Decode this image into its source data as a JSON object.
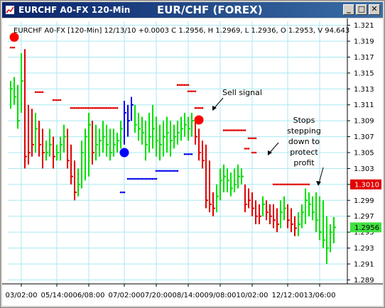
{
  "window": {
    "title": "EURCHF A0-FX 120-Min",
    "chart_title": "EUR/CHF (FOREX)",
    "buttons": {
      "minimize": "_",
      "maximize": "□",
      "close": "✕"
    }
  },
  "info_line": "EURCHF A0-FX [120-Min] 12/13/10 +0.0003 C 1.2956, H 1.2969, L 1.2936, O 1.2953, V 94.643",
  "colors": {
    "up": "#00e000",
    "down": "#e00000",
    "neutral": "#0000ee",
    "grid": "#a8e8f0",
    "sell_stop": "#e00000",
    "buy_stop": "#0000ee",
    "stop_tag_bg": "#e00000",
    "close_tag_bg": "#40e040"
  },
  "chart_data": {
    "type": "ohlc",
    "title": "EUR/CHF (FOREX)",
    "xlabel": "",
    "ylabel": "",
    "ylim": [
      1.2885,
      1.3215
    ],
    "grid": true,
    "y_ticks": [
      "1.321",
      "1.319",
      "1.317",
      "1.315",
      "1.313",
      "1.311",
      "1.309",
      "1.307",
      "1.305",
      "1.303",
      "1.301",
      "1.299",
      "1.297",
      "1.295",
      "1.293",
      "1.291",
      "1.289"
    ],
    "x_tick_labels": [
      "03/02:00",
      "05/14:00",
      "06/08:00",
      "07/02:00",
      "07/20:00",
      "08/14:00",
      "09/08:00",
      "10/02:00",
      "12/12:00",
      "13/06:00"
    ],
    "x_tick_positions": [
      3,
      13,
      22,
      32,
      41,
      50,
      59,
      68,
      78,
      87
    ],
    "num_bars": 92,
    "bars": [
      {
        "i": 0,
        "h": 1.314,
        "l": 1.3105,
        "c": 1.313,
        "col": "up"
      },
      {
        "i": 1,
        "h": 1.3145,
        "l": 1.311,
        "c": 1.312,
        "col": "up"
      },
      {
        "i": 2,
        "h": 1.3135,
        "l": 1.308,
        "c": 1.309,
        "col": "up"
      },
      {
        "i": 3,
        "h": 1.3175,
        "l": 1.31,
        "c": 1.314,
        "col": "up"
      },
      {
        "i": 4,
        "h": 1.318,
        "l": 1.303,
        "c": 1.3045,
        "col": "down"
      },
      {
        "i": 5,
        "h": 1.311,
        "l": 1.3035,
        "c": 1.305,
        "col": "down"
      },
      {
        "i": 6,
        "h": 1.3105,
        "l": 1.3045,
        "c": 1.306,
        "col": "down"
      },
      {
        "i": 7,
        "h": 1.31,
        "l": 1.305,
        "c": 1.308,
        "col": "up"
      },
      {
        "i": 8,
        "h": 1.309,
        "l": 1.3045,
        "c": 1.306,
        "col": "down"
      },
      {
        "i": 9,
        "h": 1.308,
        "l": 1.303,
        "c": 1.305,
        "col": "down"
      },
      {
        "i": 10,
        "h": 1.3065,
        "l": 1.304,
        "c": 1.305,
        "col": "up"
      },
      {
        "i": 11,
        "h": 1.308,
        "l": 1.3045,
        "c": 1.306,
        "col": "up"
      },
      {
        "i": 12,
        "h": 1.307,
        "l": 1.303,
        "c": 1.3045,
        "col": "down"
      },
      {
        "i": 13,
        "h": 1.306,
        "l": 1.304,
        "c": 1.305,
        "col": "up"
      },
      {
        "i": 14,
        "h": 1.307,
        "l": 1.304,
        "c": 1.306,
        "col": "up"
      },
      {
        "i": 15,
        "h": 1.3085,
        "l": 1.305,
        "c": 1.307,
        "col": "up"
      },
      {
        "i": 16,
        "h": 1.308,
        "l": 1.303,
        "c": 1.304,
        "col": "down"
      },
      {
        "i": 17,
        "h": 1.306,
        "l": 1.301,
        "c": 1.302,
        "col": "down"
      },
      {
        "i": 18,
        "h": 1.304,
        "l": 1.299,
        "c": 1.3,
        "col": "down"
      },
      {
        "i": 19,
        "h": 1.303,
        "l": 1.2995,
        "c": 1.301,
        "col": "up"
      },
      {
        "i": 20,
        "h": 1.3065,
        "l": 1.3005,
        "c": 1.305,
        "col": "up"
      },
      {
        "i": 21,
        "h": 1.308,
        "l": 1.3015,
        "c": 1.307,
        "col": "up"
      },
      {
        "i": 22,
        "h": 1.31,
        "l": 1.302,
        "c": 1.3085,
        "col": "up"
      },
      {
        "i": 23,
        "h": 1.309,
        "l": 1.3035,
        "c": 1.305,
        "col": "down"
      },
      {
        "i": 24,
        "h": 1.3085,
        "l": 1.304,
        "c": 1.306,
        "col": "up"
      },
      {
        "i": 25,
        "h": 1.308,
        "l": 1.3045,
        "c": 1.3065,
        "col": "up"
      },
      {
        "i": 26,
        "h": 1.309,
        "l": 1.305,
        "c": 1.307,
        "col": "up"
      },
      {
        "i": 27,
        "h": 1.3085,
        "l": 1.3045,
        "c": 1.306,
        "col": "up"
      },
      {
        "i": 28,
        "h": 1.308,
        "l": 1.304,
        "c": 1.305,
        "col": "up"
      },
      {
        "i": 29,
        "h": 1.308,
        "l": 1.3045,
        "c": 1.306,
        "col": "up"
      },
      {
        "i": 30,
        "h": 1.3075,
        "l": 1.305,
        "c": 1.3065,
        "col": "up"
      },
      {
        "i": 31,
        "h": 1.309,
        "l": 1.3055,
        "c": 1.308,
        "col": "up"
      },
      {
        "i": 32,
        "h": 1.3115,
        "l": 1.306,
        "c": 1.31,
        "col": "neutral"
      },
      {
        "i": 33,
        "h": 1.311,
        "l": 1.307,
        "c": 1.309,
        "col": "neutral"
      },
      {
        "i": 34,
        "h": 1.312,
        "l": 1.309,
        "c": 1.311,
        "col": "neutral"
      },
      {
        "i": 35,
        "h": 1.311,
        "l": 1.3075,
        "c": 1.3085,
        "col": "up"
      },
      {
        "i": 36,
        "h": 1.31,
        "l": 1.3065,
        "c": 1.308,
        "col": "up"
      },
      {
        "i": 37,
        "h": 1.3095,
        "l": 1.306,
        "c": 1.3075,
        "col": "up"
      },
      {
        "i": 38,
        "h": 1.309,
        "l": 1.304,
        "c": 1.306,
        "col": "up"
      },
      {
        "i": 39,
        "h": 1.31,
        "l": 1.305,
        "c": 1.307,
        "col": "up"
      },
      {
        "i": 40,
        "h": 1.311,
        "l": 1.3055,
        "c": 1.308,
        "col": "up"
      },
      {
        "i": 41,
        "h": 1.3095,
        "l": 1.3045,
        "c": 1.3065,
        "col": "up"
      },
      {
        "i": 42,
        "h": 1.3085,
        "l": 1.304,
        "c": 1.306,
        "col": "up"
      },
      {
        "i": 43,
        "h": 1.309,
        "l": 1.3045,
        "c": 1.307,
        "col": "up"
      },
      {
        "i": 44,
        "h": 1.3095,
        "l": 1.305,
        "c": 1.3075,
        "col": "up"
      },
      {
        "i": 45,
        "h": 1.309,
        "l": 1.3045,
        "c": 1.3065,
        "col": "up"
      },
      {
        "i": 46,
        "h": 1.3085,
        "l": 1.3055,
        "c": 1.307,
        "col": "up"
      },
      {
        "i": 47,
        "h": 1.309,
        "l": 1.306,
        "c": 1.3075,
        "col": "up"
      },
      {
        "i": 48,
        "h": 1.3095,
        "l": 1.3065,
        "c": 1.308,
        "col": "up"
      },
      {
        "i": 49,
        "h": 1.31,
        "l": 1.307,
        "c": 1.3085,
        "col": "up"
      },
      {
        "i": 50,
        "h": 1.3095,
        "l": 1.3065,
        "c": 1.308,
        "col": "up"
      },
      {
        "i": 51,
        "h": 1.31,
        "l": 1.307,
        "c": 1.309,
        "col": "up"
      },
      {
        "i": 52,
        "h": 1.309,
        "l": 1.306,
        "c": 1.307,
        "col": "down"
      },
      {
        "i": 53,
        "h": 1.308,
        "l": 1.304,
        "c": 1.305,
        "col": "down"
      },
      {
        "i": 54,
        "h": 1.3065,
        "l": 1.303,
        "c": 1.304,
        "col": "down"
      },
      {
        "i": 55,
        "h": 1.306,
        "l": 1.298,
        "c": 1.299,
        "col": "down"
      },
      {
        "i": 56,
        "h": 1.304,
        "l": 1.2975,
        "c": 1.2985,
        "col": "down"
      },
      {
        "i": 57,
        "h": 1.3,
        "l": 1.297,
        "c": 1.298,
        "col": "down"
      },
      {
        "i": 58,
        "h": 1.301,
        "l": 1.2975,
        "c": 1.2995,
        "col": "up"
      },
      {
        "i": 59,
        "h": 1.303,
        "l": 1.299,
        "c": 1.3015,
        "col": "up"
      },
      {
        "i": 60,
        "h": 1.3035,
        "l": 1.3,
        "c": 1.302,
        "col": "up"
      },
      {
        "i": 61,
        "h": 1.303,
        "l": 1.3,
        "c": 1.3015,
        "col": "up"
      },
      {
        "i": 62,
        "h": 1.3025,
        "l": 1.2995,
        "c": 1.3005,
        "col": "up"
      },
      {
        "i": 63,
        "h": 1.303,
        "l": 1.3,
        "c": 1.301,
        "col": "up"
      },
      {
        "i": 64,
        "h": 1.3035,
        "l": 1.3005,
        "c": 1.302,
        "col": "up"
      },
      {
        "i": 65,
        "h": 1.303,
        "l": 1.301,
        "c": 1.302,
        "col": "up"
      },
      {
        "i": 66,
        "h": 1.301,
        "l": 1.2975,
        "c": 1.2985,
        "col": "down"
      },
      {
        "i": 67,
        "h": 1.3005,
        "l": 1.298,
        "c": 1.299,
        "col": "down"
      },
      {
        "i": 68,
        "h": 1.3,
        "l": 1.297,
        "c": 1.298,
        "col": "down"
      },
      {
        "i": 69,
        "h": 1.299,
        "l": 1.296,
        "c": 1.297,
        "col": "down"
      },
      {
        "i": 70,
        "h": 1.2985,
        "l": 1.296,
        "c": 1.297,
        "col": "down"
      },
      {
        "i": 71,
        "h": 1.2995,
        "l": 1.297,
        "c": 1.2985,
        "col": "up"
      },
      {
        "i": 72,
        "h": 1.299,
        "l": 1.2965,
        "c": 1.2975,
        "col": "down"
      },
      {
        "i": 73,
        "h": 1.2985,
        "l": 1.296,
        "c": 1.297,
        "col": "down"
      },
      {
        "i": 74,
        "h": 1.2985,
        "l": 1.2955,
        "c": 1.2965,
        "col": "down"
      },
      {
        "i": 75,
        "h": 1.298,
        "l": 1.295,
        "c": 1.296,
        "col": "down"
      },
      {
        "i": 76,
        "h": 1.299,
        "l": 1.2955,
        "c": 1.2975,
        "col": "up"
      },
      {
        "i": 77,
        "h": 1.2995,
        "l": 1.2965,
        "c": 1.298,
        "col": "up"
      },
      {
        "i": 78,
        "h": 1.2985,
        "l": 1.2955,
        "c": 1.2965,
        "col": "down"
      },
      {
        "i": 79,
        "h": 1.298,
        "l": 1.295,
        "c": 1.296,
        "col": "down"
      },
      {
        "i": 80,
        "h": 1.297,
        "l": 1.2945,
        "c": 1.2955,
        "col": "down"
      },
      {
        "i": 81,
        "h": 1.2975,
        "l": 1.2945,
        "c": 1.296,
        "col": "up"
      },
      {
        "i": 82,
        "h": 1.2985,
        "l": 1.2955,
        "c": 1.2975,
        "col": "up"
      },
      {
        "i": 83,
        "h": 1.3005,
        "l": 1.296,
        "c": 1.299,
        "col": "up"
      },
      {
        "i": 84,
        "h": 1.3,
        "l": 1.297,
        "c": 1.2985,
        "col": "up"
      },
      {
        "i": 85,
        "h": 1.2995,
        "l": 1.2965,
        "c": 1.2975,
        "col": "up"
      },
      {
        "i": 86,
        "h": 1.3,
        "l": 1.295,
        "c": 1.2965,
        "col": "up"
      },
      {
        "i": 87,
        "h": 1.2995,
        "l": 1.294,
        "c": 1.295,
        "col": "up"
      },
      {
        "i": 88,
        "h": 1.299,
        "l": 1.293,
        "c": 1.294,
        "col": "up"
      },
      {
        "i": 89,
        "h": 1.297,
        "l": 1.291,
        "c": 1.293,
        "col": "up"
      },
      {
        "i": 90,
        "h": 1.296,
        "l": 1.2925,
        "c": 1.295,
        "col": "up"
      },
      {
        "i": 91,
        "h": 1.2969,
        "l": 1.2936,
        "c": 1.2956,
        "col": "up"
      }
    ],
    "sell_stops": [
      {
        "from": 0,
        "to": 1,
        "v": 1.3182
      },
      {
        "from": 7,
        "to": 9,
        "v": 1.3126
      },
      {
        "from": 12,
        "to": 14,
        "v": 1.3116
      },
      {
        "from": 17,
        "to": 30,
        "v": 1.3106
      },
      {
        "from": 47,
        "to": 50,
        "v": 1.3135
      },
      {
        "from": 50,
        "to": 52,
        "v": 1.3127
      },
      {
        "from": 52,
        "to": 54,
        "v": 1.3106
      },
      {
        "from": 60,
        "to": 66,
        "v": 1.3078
      },
      {
        "from": 67,
        "to": 69,
        "v": 1.3068
      },
      {
        "from": 66,
        "to": 67,
        "v": 1.3055
      },
      {
        "from": 68,
        "to": 69,
        "v": 1.305
      },
      {
        "from": 74,
        "to": 84,
        "v": 1.301
      }
    ],
    "buy_stops": [
      {
        "from": 31,
        "to": 32,
        "v": 1.3
      },
      {
        "from": 33,
        "to": 41,
        "v": 1.3017
      },
      {
        "from": 41,
        "to": 47,
        "v": 1.3027
      },
      {
        "from": 49,
        "to": 51,
        "v": 1.3048
      }
    ],
    "signal_markers": [
      {
        "i": 1,
        "v": 1.3195,
        "color": "red",
        "label": ""
      },
      {
        "i": 32,
        "v": 1.305,
        "color": "blue",
        "label": ""
      },
      {
        "i": 53,
        "v": 1.3091,
        "color": "red",
        "label": ""
      }
    ],
    "annotations": [
      {
        "text": [
          "Sell signal"
        ]
      },
      {
        "text": [
          "Stops",
          "stepping",
          "down to",
          "protect",
          "profit"
        ]
      }
    ],
    "price_tags": [
      {
        "label": "1.3010",
        "v": 1.301,
        "kind": "stop"
      },
      {
        "label": "1.2956",
        "v": 1.2956,
        "kind": "close"
      }
    ]
  }
}
